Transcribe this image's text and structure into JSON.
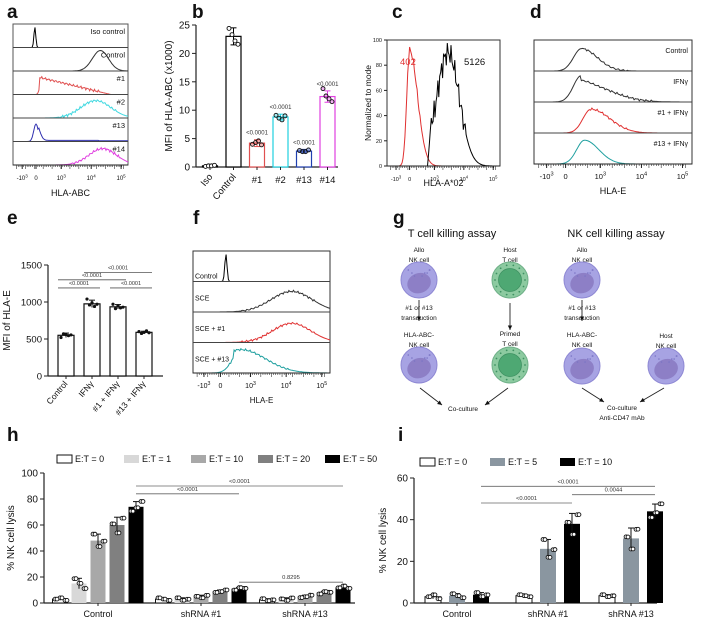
{
  "panel_labels": [
    "a",
    "b",
    "c",
    "d",
    "e",
    "f",
    "g",
    "h",
    "i"
  ],
  "chart_data": [
    {
      "id": "a",
      "type": "histogram-stack",
      "xlabel": "HLA-ABC",
      "xticks": [
        "-10^3",
        "0",
        "10^3",
        "10^4",
        "10^5"
      ],
      "tracks": [
        {
          "name": "Iso control",
          "color": "#000000",
          "peak_log": 0.0,
          "width": 0.08,
          "shape": "narrow"
        },
        {
          "name": "Control",
          "color": "#333333",
          "peak_log": 4.25,
          "width": 0.45
        },
        {
          "name": "#1",
          "color": "#e05050",
          "peak_log": 0.6,
          "width": 1.8,
          "shape": "skew"
        },
        {
          "name": "#2",
          "color": "#40d8e0",
          "peak_log": 3.8,
          "width": 0.8
        },
        {
          "name": "#13",
          "color": "#3030b0",
          "peak_log": 0.05,
          "width": 0.25,
          "shape": "narrow-tail"
        },
        {
          "name": "#14",
          "color": "#e040e0",
          "peak_log": 4.1,
          "width": 0.7
        }
      ]
    },
    {
      "id": "b",
      "type": "bar",
      "ylabel": "MFI of HLA-ABC (x1000)",
      "ylim": [
        0,
        25
      ],
      "yticks": [
        0,
        5,
        10,
        15,
        20,
        25
      ],
      "categories": [
        "Iso",
        "Control",
        "#1",
        "#2",
        "#13",
        "#14"
      ],
      "colors": [
        "#000000",
        "#000000",
        "#e05050",
        "#20d0e0",
        "#2040b0",
        "#e040e0"
      ],
      "values": [
        0.2,
        23.0,
        4.2,
        8.8,
        2.8,
        12.4
      ],
      "errors": [
        0.1,
        1.5,
        0.6,
        0.5,
        0.3,
        1.0
      ],
      "points": [
        [
          0.1,
          0.2,
          0.2,
          0.3
        ],
        [
          24.4,
          23.3,
          22.2,
          21.6
        ],
        [
          4.0,
          4.3,
          4.6,
          3.9
        ],
        [
          9.1,
          8.6,
          8.3,
          9.0
        ],
        [
          2.9,
          2.7,
          2.7,
          3.0
        ],
        [
          13.8,
          12.5,
          12.0,
          11.5
        ]
      ],
      "annotations": [
        "",
        "",
        "<0.0001",
        "<0.0001",
        "<0.0001",
        "<0.0001"
      ]
    },
    {
      "id": "c",
      "type": "histogram-overlay",
      "ylabel": "Normalized to mode",
      "xlabel": "HLA-A*02",
      "ylim": [
        0,
        100
      ],
      "yticks": [
        0,
        20,
        40,
        60,
        80,
        100
      ],
      "xticks": [
        "-10^3",
        "0",
        "10^3",
        "10^4",
        "10^5"
      ],
      "series": [
        {
          "name": "402",
          "color": "#e03030",
          "label": "402"
        },
        {
          "name": "5126",
          "color": "#000000",
          "label": "5126"
        }
      ]
    },
    {
      "id": "d",
      "type": "histogram-stack",
      "xlabel": "HLA-E",
      "xticks": [
        "-10^3",
        "0",
        "10^3",
        "10^4",
        "10^5"
      ],
      "tracks": [
        {
          "name": "Control",
          "color": "#333333"
        },
        {
          "name": "IFNγ",
          "color": "#333333"
        },
        {
          "name": "#1 + IFNγ",
          "color": "#e03030"
        },
        {
          "name": "#13 + IFNγ",
          "color": "#20a0a0"
        }
      ]
    },
    {
      "id": "e",
      "type": "bar",
      "ylabel": "MFI of HLA-E",
      "ylim": [
        0,
        1500
      ],
      "yticks": [
        0,
        500,
        1000,
        1500
      ],
      "categories": [
        "Control",
        "IFNγ",
        "#1 + IFNγ",
        "#13 + IFNγ"
      ],
      "values": [
        550,
        975,
        935,
        590
      ],
      "errors": [
        30,
        50,
        30,
        15
      ],
      "points": [
        [
          520,
          570,
          560,
          545,
          555
        ],
        [
          1040,
          960,
          990,
          940,
          970
        ],
        [
          970,
          910,
          950,
          920,
          930
        ],
        [
          600,
          575,
          590,
          610,
          585
        ]
      ],
      "comparisons": [
        {
          "from": 0,
          "to": 1,
          "label": "<0.0001"
        },
        {
          "from": 0,
          "to": 2,
          "label": "<0.0001"
        },
        {
          "from": 2,
          "to": 3,
          "label": "<0.0001"
        },
        {
          "from": 1,
          "to": 3,
          "label": "<0.0001"
        }
      ]
    },
    {
      "id": "f",
      "type": "histogram-stack",
      "xlabel": "HLA-E",
      "xticks": [
        "-10^3",
        "0",
        "10^3",
        "10^4",
        "10^5"
      ],
      "tracks": [
        {
          "name": "Control",
          "color": "#000000"
        },
        {
          "name": "SCE",
          "color": "#333333"
        },
        {
          "name": "SCE + #1",
          "color": "#e03030"
        },
        {
          "name": "SCE + #13",
          "color": "#20a0a0"
        }
      ]
    },
    {
      "id": "h",
      "type": "bar",
      "ylabel": "% NK cell lysis",
      "ylim": [
        0,
        100
      ],
      "yticks": [
        0,
        20,
        40,
        60,
        80,
        100
      ],
      "categories": [
        "Control",
        "shRNA #1",
        "shRNA #13"
      ],
      "series": [
        {
          "name": "E:T = 0",
          "color": "#ffffff",
          "values": [
            3,
            3,
            2.5
          ],
          "errors": [
            1,
            1,
            0.8
          ]
        },
        {
          "name": "E:T = 1",
          "color": "#d8d8d8",
          "values": [
            15,
            3,
            3
          ],
          "errors": [
            4,
            1,
            1
          ]
        },
        {
          "name": "E:T = 10",
          "color": "#a8a8a8",
          "values": [
            48,
            5,
            5
          ],
          "errors": [
            5,
            1,
            1
          ]
        },
        {
          "name": "E:T = 20",
          "color": "#808080",
          "values": [
            60,
            9,
            8
          ],
          "errors": [
            6,
            1,
            1
          ]
        },
        {
          "name": "E:T = 50",
          "color": "#000000",
          "values": [
            74,
            11,
            12
          ],
          "errors": [
            4,
            1,
            1
          ]
        }
      ],
      "comparisons": [
        {
          "label": "<0.0001",
          "y": 90,
          "from": [
            0,
            4
          ],
          "to": [
            2,
            4
          ]
        },
        {
          "label": "<0.0001",
          "y": 84,
          "from": [
            0,
            4
          ],
          "to": [
            1,
            4
          ]
        },
        {
          "label": "0.8295",
          "y": 16,
          "from": [
            1,
            4
          ],
          "to": [
            2,
            4
          ]
        }
      ]
    },
    {
      "id": "i",
      "type": "bar",
      "ylabel": "% NK cell lysis",
      "ylim": [
        0,
        60
      ],
      "yticks": [
        0,
        20,
        40,
        60
      ],
      "categories": [
        "Control",
        "shRNA #1",
        "shRNA #13"
      ],
      "series": [
        {
          "name": "E:T = 0",
          "color": "#ffffff",
          "values": [
            3,
            3.5,
            3.5
          ],
          "errors": [
            1,
            0.5,
            0.5
          ]
        },
        {
          "name": "E:T = 5",
          "color": "#8a96a0",
          "values": [
            3.5,
            26,
            31
          ],
          "errors": [
            1,
            4.5,
            5
          ]
        },
        {
          "name": "E:T = 10",
          "color": "#000000",
          "values": [
            4,
            38,
            44
          ],
          "errors": [
            1,
            5,
            3.5
          ]
        }
      ],
      "comparisons": [
        {
          "label": "<0.0001",
          "y": 56,
          "from": [
            0,
            2
          ],
          "to": [
            2,
            2
          ]
        },
        {
          "label": "<0.0001",
          "y": 48,
          "from": [
            0,
            2
          ],
          "to": [
            1,
            2
          ]
        },
        {
          "label": "0.0044",
          "y": 52,
          "from": [
            1,
            2
          ],
          "to": [
            2,
            2
          ]
        }
      ]
    }
  ],
  "diagram_g": {
    "t_title": "T cell killing assay",
    "nk_title": "NK cell killing assay",
    "t_left_top": [
      "Allo",
      "NK cell"
    ],
    "t_right_top": [
      "Host",
      "T cell"
    ],
    "transduction": [
      "#1 or #13",
      "transduction"
    ],
    "hla_abc": [
      "HLA-ABC-",
      "NK cell"
    ],
    "primed": [
      "Primed",
      "T cell"
    ],
    "coculture": "Co-culture",
    "nk_left_top": [
      "Allo",
      "NK cell"
    ],
    "nk_host": [
      "Host",
      "NK cell"
    ],
    "nk_coculture": [
      "Co-culture",
      "Anti-CD47 mAb"
    ],
    "nk_color": "#a7a3e3",
    "t_color": "#8ccaa0"
  }
}
